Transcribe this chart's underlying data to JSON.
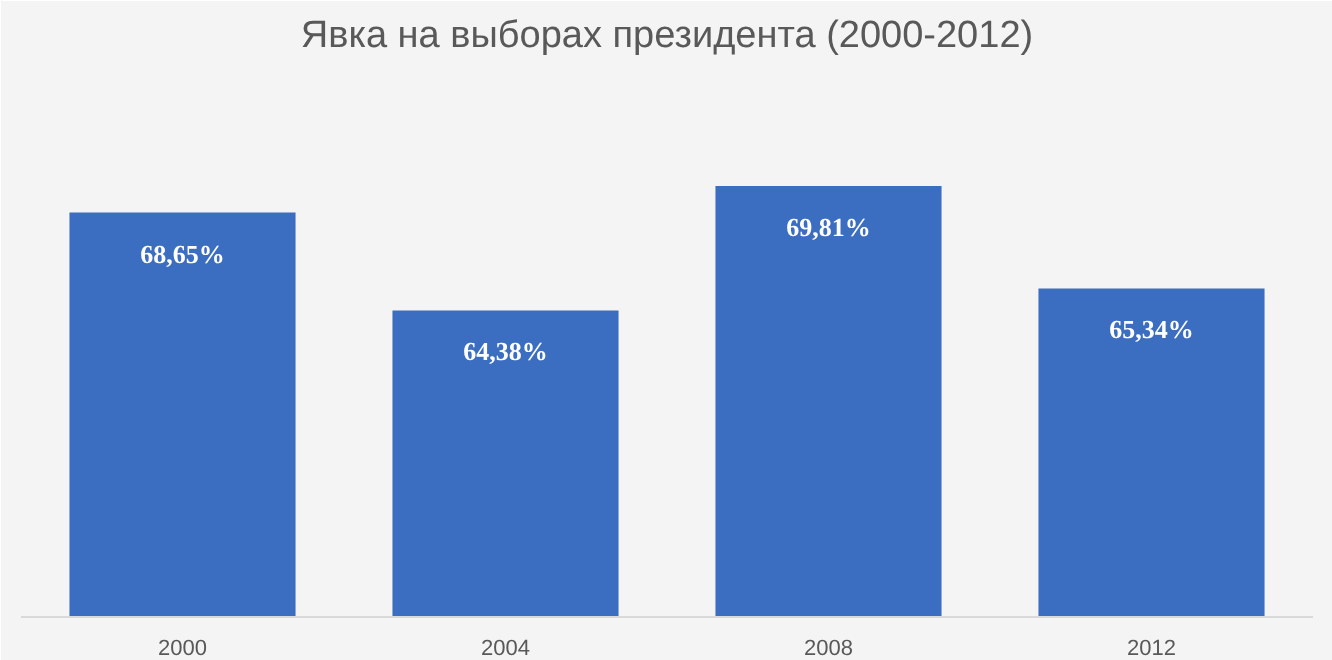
{
  "chart_data": {
    "type": "bar",
    "title": "Явка на выборах президента (2000-2012)",
    "categories": [
      "2000",
      "2004",
      "2008",
      "2012"
    ],
    "values": [
      68.65,
      64.38,
      69.81,
      65.34
    ],
    "value_labels": [
      "68,65%",
      "64,38%",
      "69,81%",
      "65,34%"
    ],
    "color": "#3b6dc0",
    "ylim": [
      51,
      75
    ],
    "tick_labels": "x",
    "grid": false
  }
}
